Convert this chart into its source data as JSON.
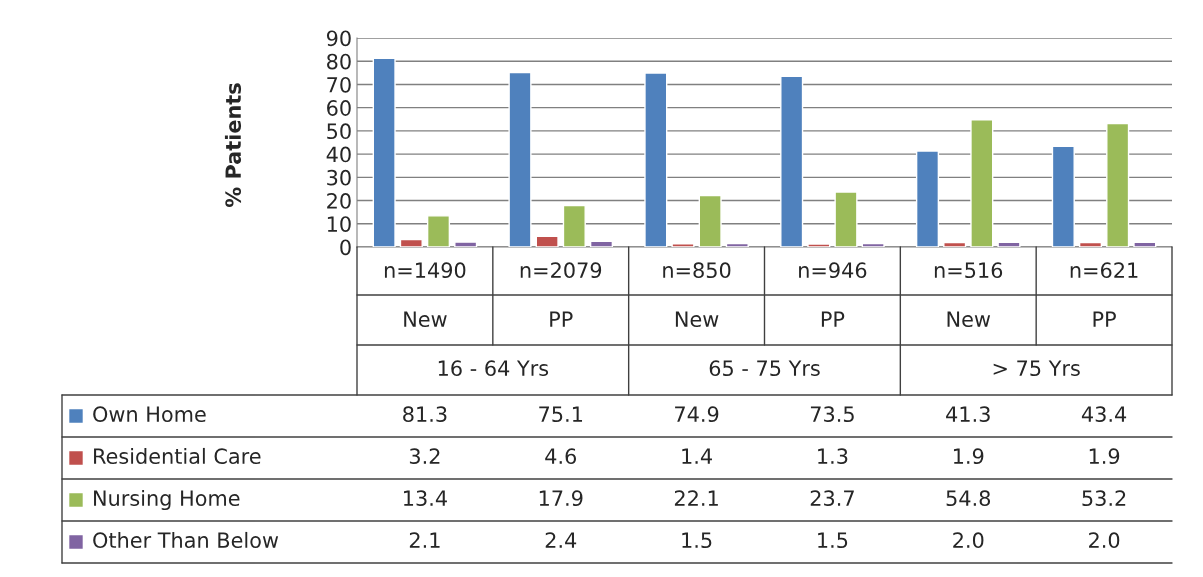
{
  "chart_data": {
    "type": "bar",
    "ylabel": "% Patients",
    "categories": [
      "n=1490\nNew",
      "n=2079\nPP",
      "n=850\nNew",
      "n=946\nPP",
      "n=516\nNew",
      "n=621\nPP"
    ],
    "annotations": [
      "16 - 64 Yrs",
      "65 - 75 Yrs",
      "> 75 Yrs"
    ],
    "series": [
      {
        "name": "Own Home",
        "color": "#4f81bd",
        "values": [
          81.3,
          75.1,
          74.9,
          73.5,
          41.3,
          43.4
        ],
        "value_labels": [
          "81.3",
          "75.1",
          "74.9",
          "73.5",
          "41.3",
          "43.4"
        ]
      },
      {
        "name": "Residential Care",
        "color": "#c0504d",
        "values": [
          3.2,
          4.6,
          1.4,
          1.3,
          1.9,
          1.9
        ],
        "value_labels": [
          "3.2",
          "4.6",
          "1.4",
          "1.3",
          "1.9",
          "1.9"
        ]
      },
      {
        "name": "Nursing Home",
        "color": "#9bbb59",
        "values": [
          13.4,
          17.9,
          22.1,
          23.7,
          54.8,
          53.2
        ],
        "value_labels": [
          "13.4",
          "17.9",
          "22.1",
          "23.7",
          "54.8",
          "53.2"
        ]
      },
      {
        "name": "Other Than Below",
        "color": "#8064a2",
        "values": [
          2.1,
          2.4,
          1.5,
          1.5,
          2.0,
          2.0
        ],
        "value_labels": [
          "2.1",
          "2.4",
          "1.5",
          "1.5",
          "2.0",
          "2.0"
        ]
      }
    ],
    "ylim": [
      0,
      90
    ],
    "yticks": [
      0,
      10,
      20,
      30,
      40,
      50,
      60,
      70,
      80,
      90
    ],
    "grid": "y",
    "legend": "bottom"
  }
}
